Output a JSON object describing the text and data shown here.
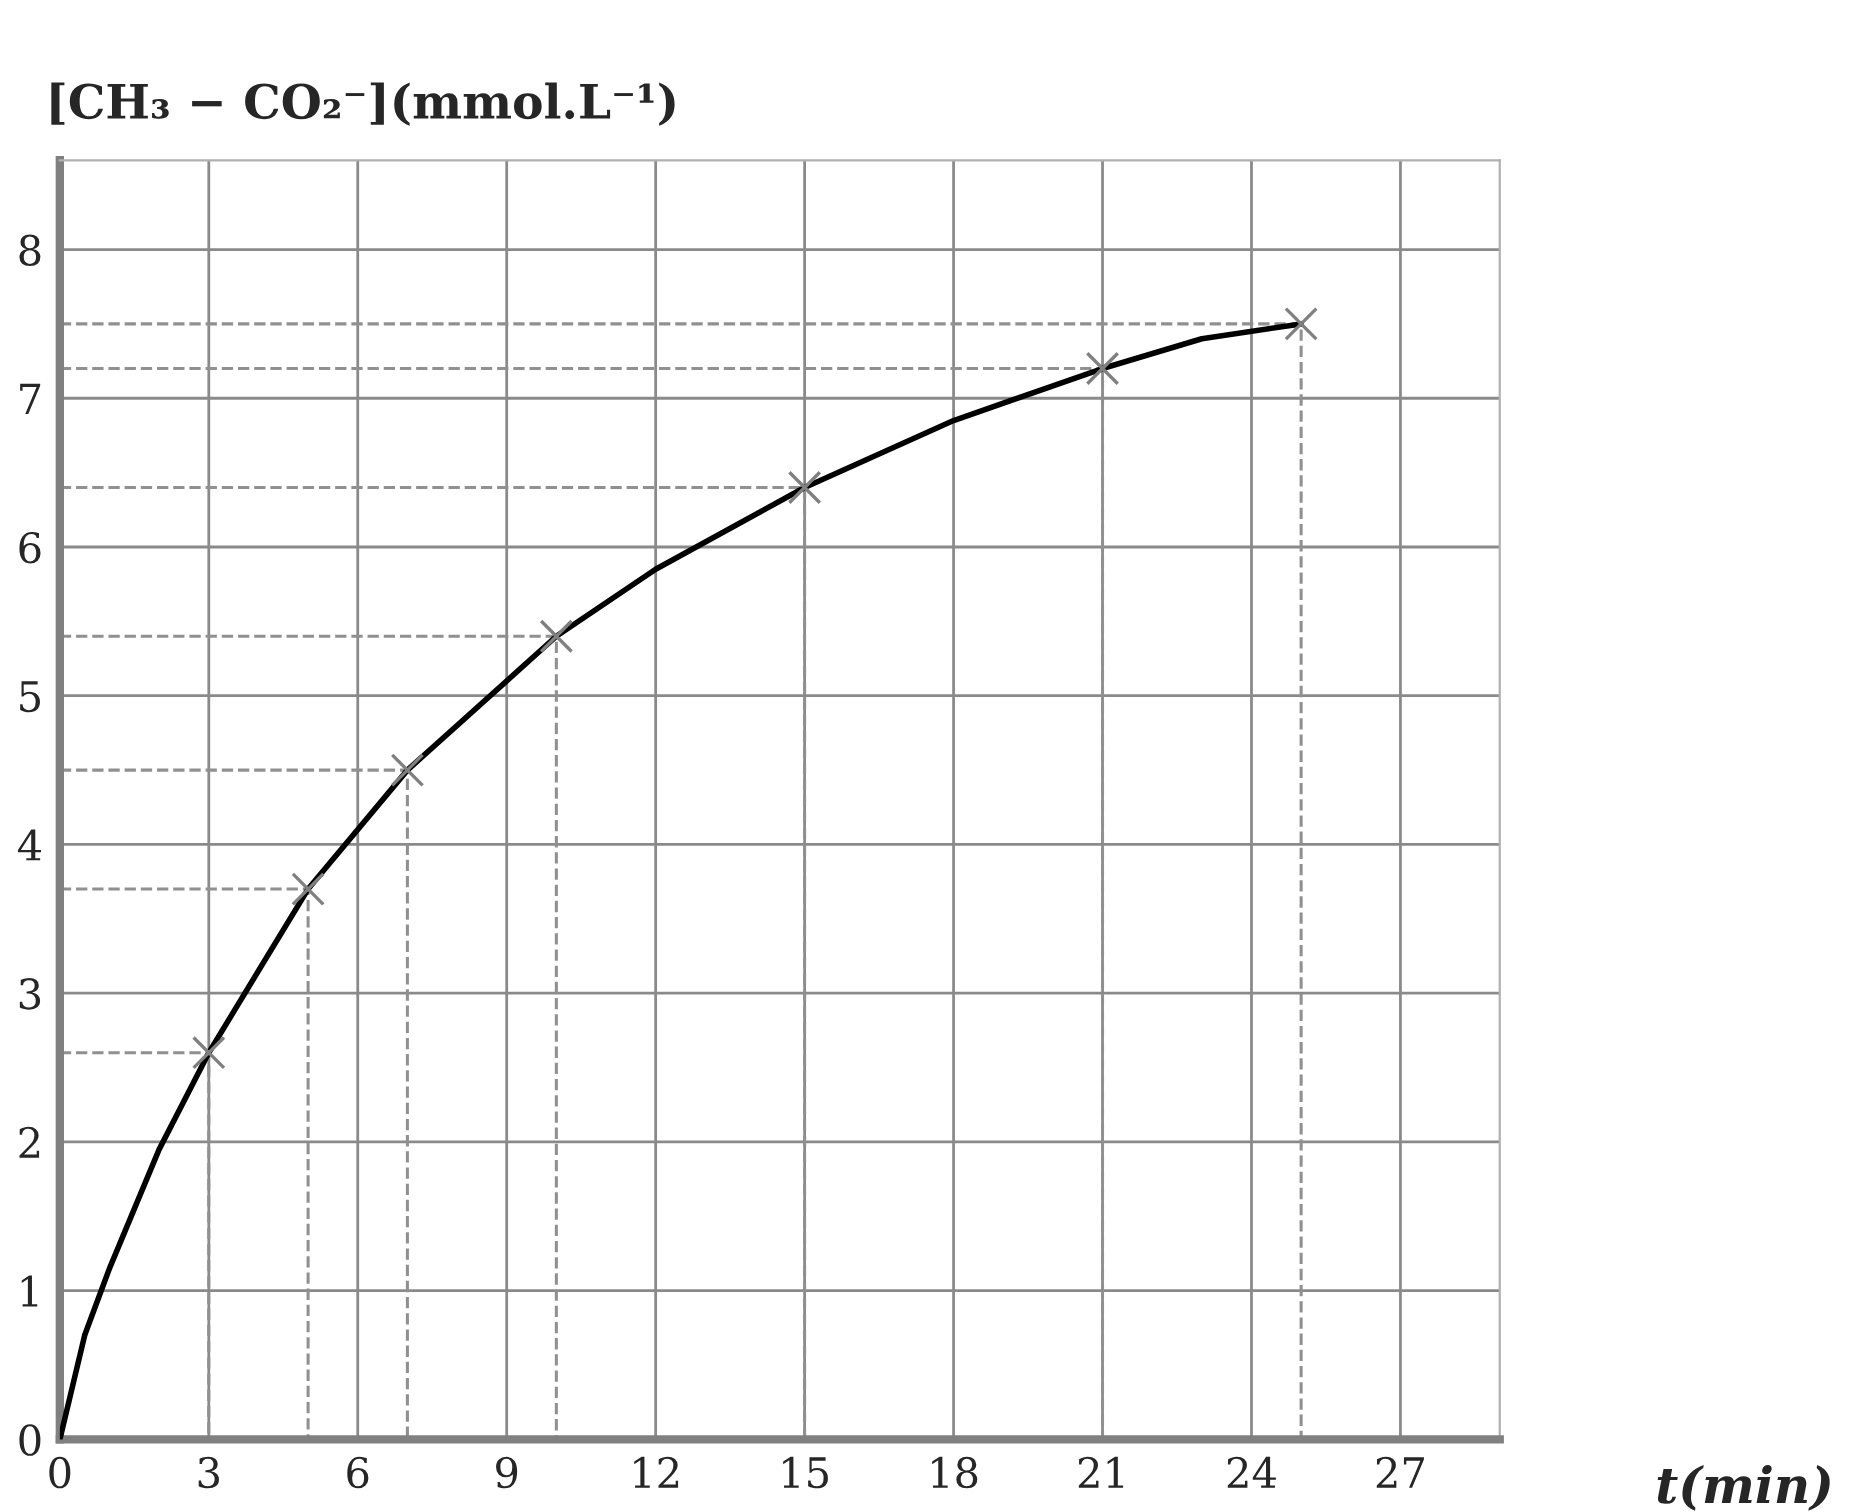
{
  "chart_data": {
    "type": "line",
    "xlabel": "t(min)",
    "ylabel": "[CH₃ − CO₂⁻](mmol.L⁻¹)",
    "xlim": [
      0,
      29
    ],
    "ylim": [
      0,
      8.6
    ],
    "xticks": [
      0,
      3,
      6,
      9,
      12,
      15,
      18,
      21,
      24,
      27
    ],
    "yticks": [
      0,
      1,
      2,
      3,
      4,
      5,
      6,
      7,
      8
    ],
    "grid": true,
    "series": [
      {
        "color": "#000000",
        "marker": "none",
        "line_style": "solid",
        "x": [
          0,
          0.5,
          1,
          2,
          3,
          5,
          7,
          10,
          12,
          15,
          18,
          21,
          23,
          25
        ],
        "values": [
          0,
          0.7,
          1.15,
          1.95,
          2.6,
          3.7,
          4.5,
          5.4,
          5.85,
          6.4,
          6.85,
          7.2,
          7.4,
          7.5
        ]
      },
      {
        "type": "scatter",
        "color": "#808080",
        "marker": "cross",
        "x": [
          3,
          5,
          7,
          10,
          15,
          21,
          25
        ],
        "values": [
          2.6,
          3.7,
          4.5,
          5.4,
          6.4,
          7.2,
          7.5
        ]
      },
      {
        "color": "#909090",
        "marker": "none",
        "line_style": "dashed",
        "x": [
          0,
          3,
          3
        ],
        "values": [
          2.6,
          2.6,
          0
        ]
      },
      {
        "color": "#909090",
        "marker": "none",
        "line_style": "dashed",
        "x": [
          0,
          5,
          5
        ],
        "values": [
          3.7,
          3.7,
          0
        ]
      },
      {
        "color": "#909090",
        "marker": "none",
        "line_style": "dashed",
        "x": [
          0,
          7,
          7
        ],
        "values": [
          4.5,
          4.5,
          0
        ]
      },
      {
        "color": "#909090",
        "marker": "none",
        "line_style": "dashed",
        "x": [
          0,
          10,
          10
        ],
        "values": [
          5.4,
          5.4,
          0
        ]
      },
      {
        "color": "#909090",
        "marker": "none",
        "line_style": "dashed",
        "x": [
          0,
          15,
          15
        ],
        "values": [
          6.4,
          6.4,
          0
        ]
      },
      {
        "color": "#909090",
        "marker": "none",
        "line_style": "dashed",
        "x": [
          0,
          21,
          21
        ],
        "values": [
          7.2,
          7.2,
          0
        ]
      },
      {
        "color": "#909090",
        "marker": "none",
        "line_style": "dashed",
        "x": [
          0,
          25,
          25
        ],
        "values": [
          7.5,
          7.5,
          0
        ]
      }
    ]
  }
}
